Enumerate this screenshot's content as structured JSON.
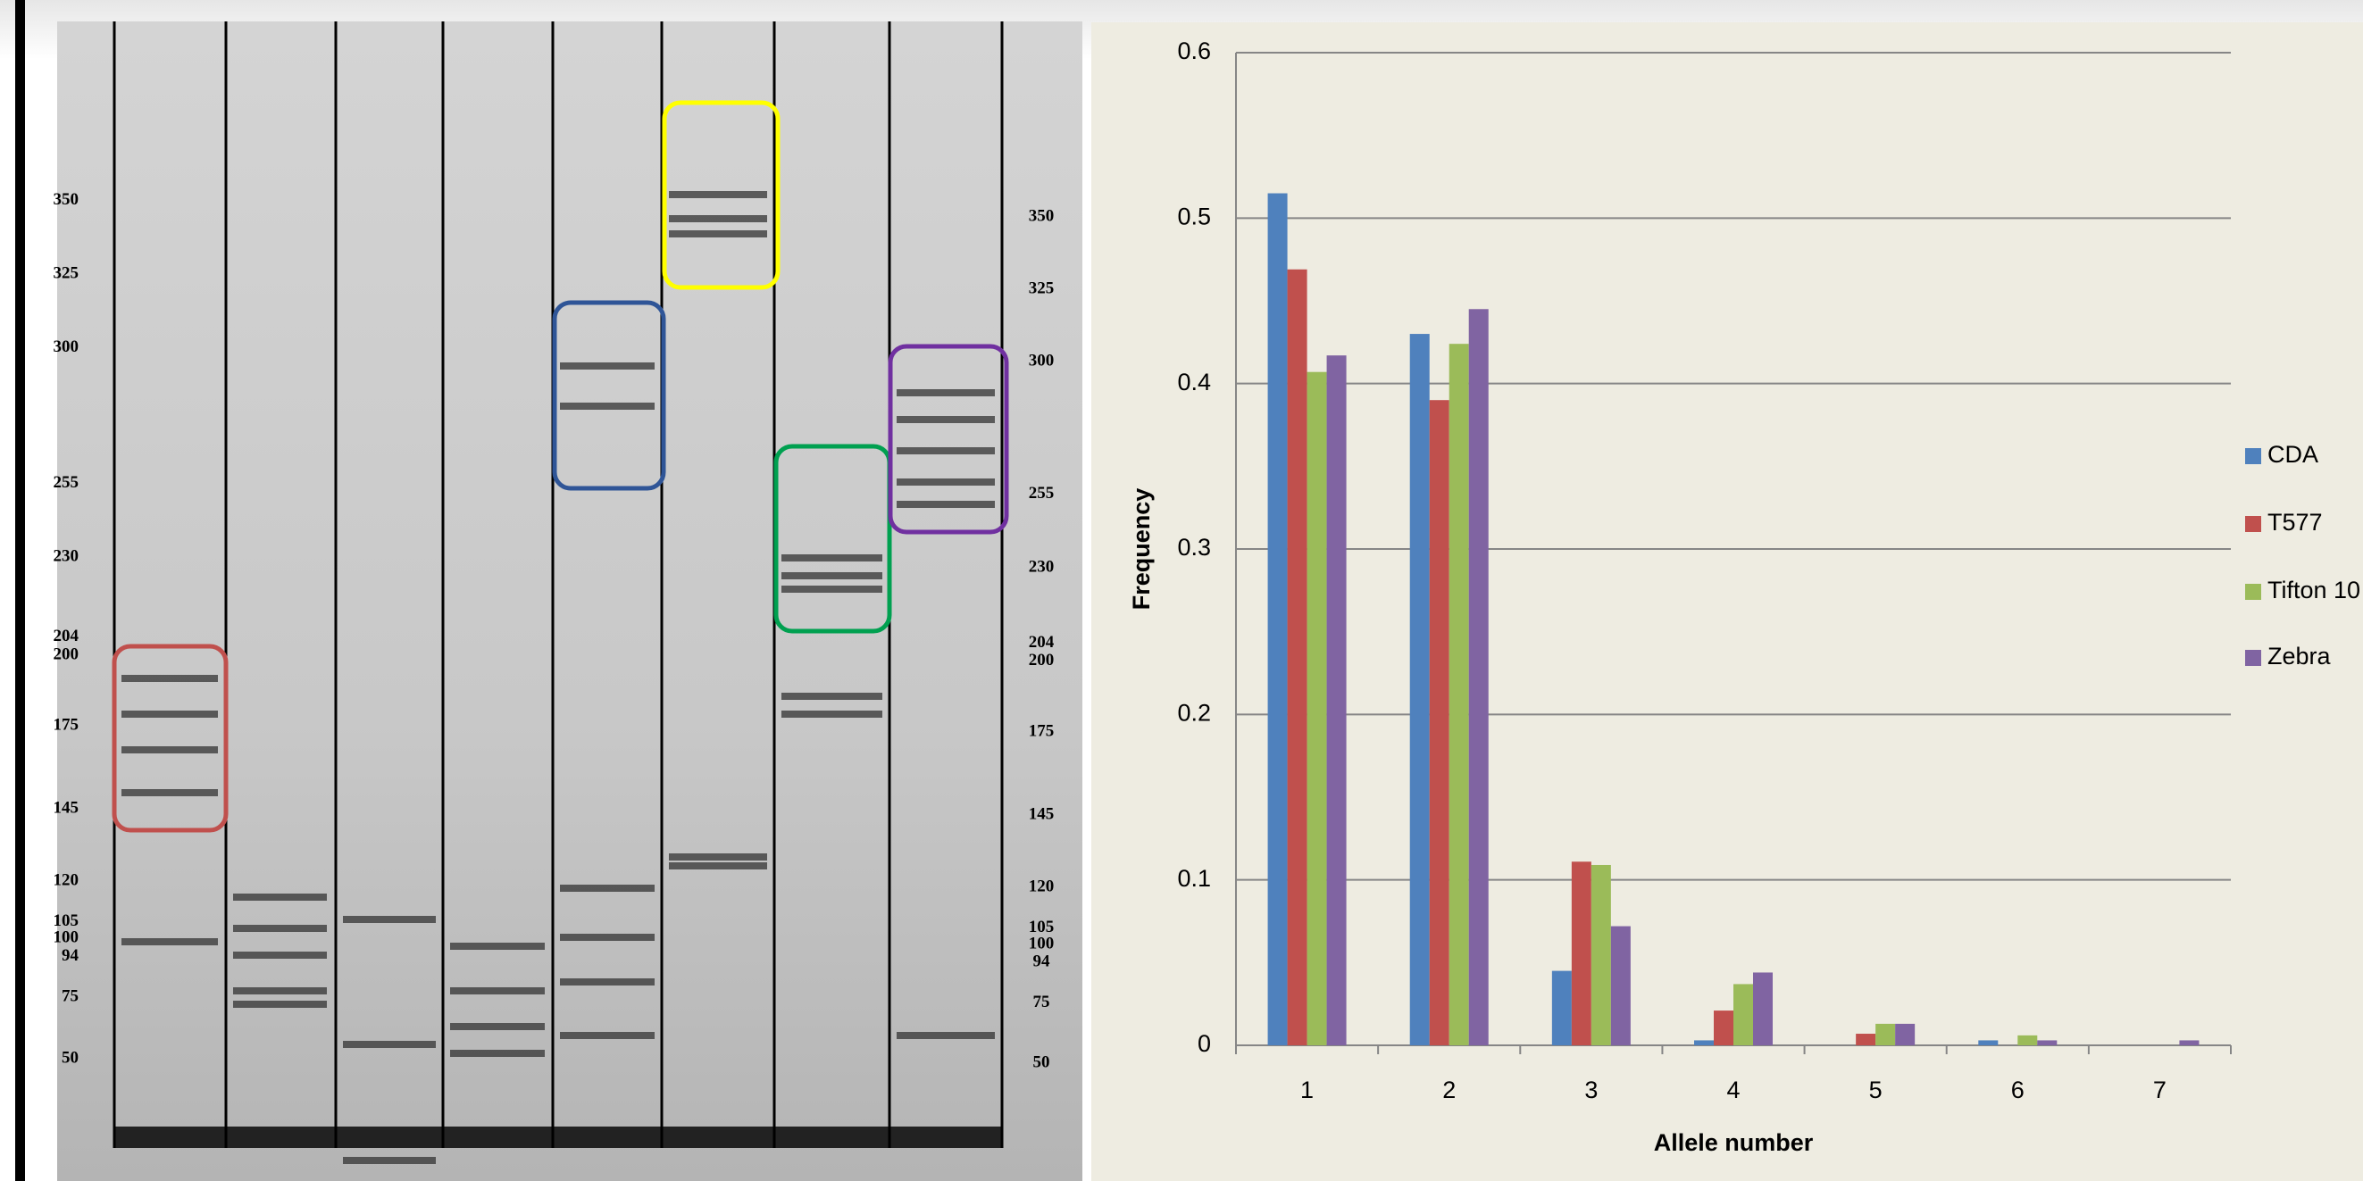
{
  "gel": {
    "ladder_left": [
      350,
      325,
      300,
      255,
      230,
      204,
      200,
      175,
      145,
      120,
      105,
      100,
      94,
      75,
      50
    ],
    "ladder_right": [
      350,
      325,
      300,
      255,
      230,
      204,
      200,
      175,
      145,
      120,
      105,
      100,
      94,
      75,
      50
    ]
  },
  "chart_data": {
    "type": "bar",
    "x_label": "Allele number",
    "y_label": "Frequency",
    "categories": [
      "1",
      "2",
      "3",
      "4",
      "5",
      "6",
      "7"
    ],
    "series": [
      {
        "name": "CDA",
        "color": "#4f81bd",
        "values": [
          0.515,
          0.43,
          0.045,
          0.003,
          0,
          0.003,
          0
        ]
      },
      {
        "name": "T577",
        "color": "#c0504d",
        "values": [
          0.469,
          0.39,
          0.111,
          0.021,
          0.007,
          0,
          0
        ]
      },
      {
        "name": "Tifton 10",
        "color": "#9bbb59",
        "values": [
          0.407,
          0.424,
          0.109,
          0.037,
          0.013,
          0.006,
          0
        ]
      },
      {
        "name": "Zebra",
        "color": "#8064a2",
        "values": [
          0.417,
          0.445,
          0.072,
          0.044,
          0.013,
          0.003,
          0.003
        ]
      }
    ],
    "ylim": [
      0,
      0.6
    ],
    "yticks": [
      0,
      0.1,
      0.2,
      0.3,
      0.4,
      0.5,
      0.6
    ],
    "grid": true,
    "legend": "right"
  }
}
